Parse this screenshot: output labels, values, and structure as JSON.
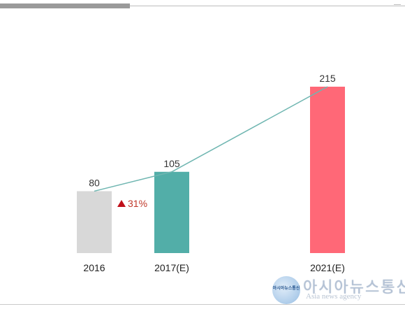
{
  "chart_data": {
    "type": "bar",
    "categories": [
      "2016",
      "2017(E)",
      "2021(E)"
    ],
    "values": [
      80,
      105,
      215
    ],
    "value_labels": [
      "80",
      "105",
      "215"
    ],
    "bar_colors": [
      "#d8d8d8",
      "#52aea8",
      "#ff6877"
    ],
    "trend_line": {
      "values": [
        80,
        105,
        215
      ],
      "color": "#6fb6b1"
    },
    "annotation": {
      "text": "31%",
      "marker_color": "#c0101a",
      "text_color": "#c0392b"
    },
    "title": "",
    "xlabel": "",
    "ylabel": "",
    "ylim": [
      0,
      215
    ],
    "grid": false,
    "legend": "none"
  },
  "watermark": {
    "badge_text": "아시아뉴스통신",
    "title": "아시아뉴스통신",
    "subtitle": "Asia news agency"
  },
  "colors": {
    "top_bar": "#9a9a9a",
    "rule": "#bdbdbd"
  }
}
